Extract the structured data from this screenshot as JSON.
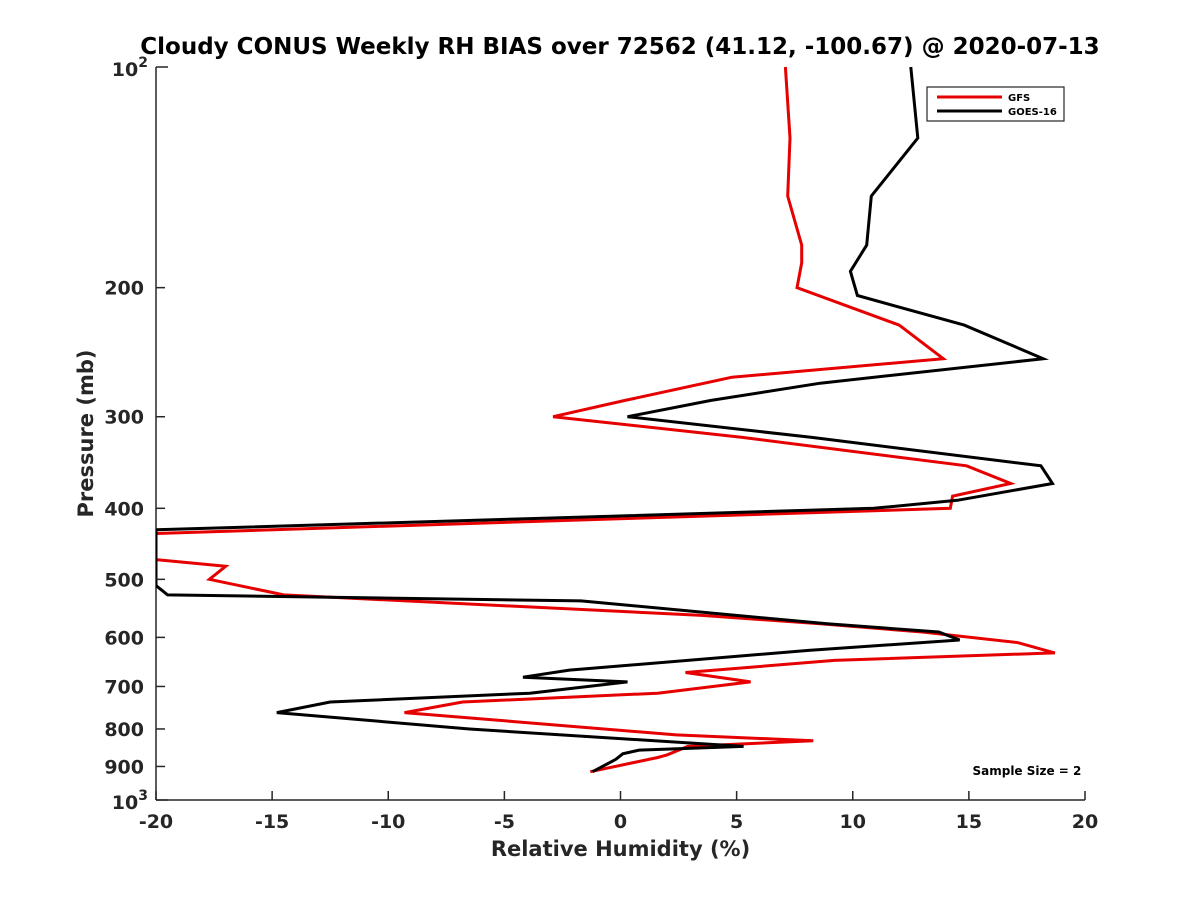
{
  "chart_data": {
    "type": "line",
    "title": "Cloudy CONUS Weekly RH BIAS over 72562 (41.12, -100.67) @ 2020-07-13",
    "xlabel": "Relative Humidity (%)",
    "ylabel": "Pressure (mb)",
    "xlim": [
      -20,
      20
    ],
    "ylim": [
      100,
      1000
    ],
    "y_scale": "log",
    "y_reversed": true,
    "grid": false,
    "legend_placement": "top-right",
    "x_ticks": [
      -20,
      -15,
      -10,
      -5,
      0,
      5,
      10,
      15,
      20
    ],
    "x_tick_labels": [
      "-20",
      "-15",
      "-10",
      "-5",
      "0",
      "5",
      "10",
      "15",
      "20"
    ],
    "y_ticks": [
      200,
      300,
      400,
      500,
      600,
      700,
      800,
      900
    ],
    "y_tick_labels": [
      "200",
      "300",
      "400",
      "500",
      "600",
      "700",
      "800",
      "900"
    ],
    "y_decade_ticks": [
      {
        "value": 100,
        "base": "10",
        "exp": "2"
      },
      {
        "value": 1000,
        "base": "10",
        "exp": "3"
      }
    ],
    "series": [
      {
        "name": "GFS",
        "color": "#e60000",
        "points": [
          [
            7.1,
            100
          ],
          [
            7.3,
            125
          ],
          [
            7.2,
            150
          ],
          [
            7.8,
            175
          ],
          [
            7.8,
            185
          ],
          [
            7.6,
            200
          ],
          [
            12.0,
            225
          ],
          [
            13.9,
            250
          ],
          [
            4.8,
            265
          ],
          [
            0.2,
            285
          ],
          [
            -2.9,
            300
          ],
          [
            5.2,
            320
          ],
          [
            14.9,
            350
          ],
          [
            16.8,
            370
          ],
          [
            14.3,
            385
          ],
          [
            14.2,
            400
          ],
          [
            0.3,
            413
          ],
          [
            -20.0,
            433
          ],
          [
            -20.0,
            470
          ],
          [
            -17.0,
            480
          ],
          [
            -17.7,
            500
          ],
          [
            -14.5,
            525
          ],
          [
            3.5,
            560
          ],
          [
            8.6,
            575
          ],
          [
            13.0,
            590
          ],
          [
            17.1,
            610
          ],
          [
            18.7,
            630
          ],
          [
            9.2,
            645
          ],
          [
            2.8,
            670
          ],
          [
            5.6,
            690
          ],
          [
            1.6,
            715
          ],
          [
            -6.8,
            735
          ],
          [
            -9.3,
            760
          ],
          [
            2.4,
            815
          ],
          [
            8.3,
            830
          ],
          [
            2.9,
            845
          ],
          [
            2.0,
            868
          ],
          [
            1.6,
            875
          ],
          [
            -1.3,
            915
          ]
        ]
      },
      {
        "name": "GOES-16",
        "color": "#000000",
        "points": [
          [
            12.5,
            100
          ],
          [
            12.8,
            125
          ],
          [
            10.8,
            150
          ],
          [
            10.6,
            175
          ],
          [
            9.9,
            190
          ],
          [
            10.2,
            205
          ],
          [
            14.8,
            225
          ],
          [
            18.2,
            250
          ],
          [
            8.6,
            270
          ],
          [
            3.9,
            285
          ],
          [
            0.3,
            300
          ],
          [
            8.2,
            320
          ],
          [
            18.1,
            350
          ],
          [
            18.6,
            370
          ],
          [
            14.5,
            390
          ],
          [
            10.9,
            400
          ],
          [
            -3.7,
            413
          ],
          [
            -20.0,
            428
          ],
          [
            -20.0,
            510
          ],
          [
            -19.5,
            525
          ],
          [
            -1.7,
            535
          ],
          [
            8.9,
            575
          ],
          [
            13.7,
            590
          ],
          [
            14.6,
            605
          ],
          [
            8.1,
            625
          ],
          [
            -2.2,
            665
          ],
          [
            -4.2,
            680
          ],
          [
            0.3,
            690
          ],
          [
            -3.9,
            715
          ],
          [
            -12.5,
            735
          ],
          [
            -14.8,
            760
          ],
          [
            -6.5,
            800
          ],
          [
            5.3,
            845
          ],
          [
            0.8,
            855
          ],
          [
            0.1,
            865
          ],
          [
            -0.2,
            880
          ],
          [
            -1.2,
            915
          ]
        ]
      }
    ],
    "annotations": [
      {
        "text": "Sample Size = 2",
        "x": 17.5,
        "y": 910
      }
    ]
  }
}
